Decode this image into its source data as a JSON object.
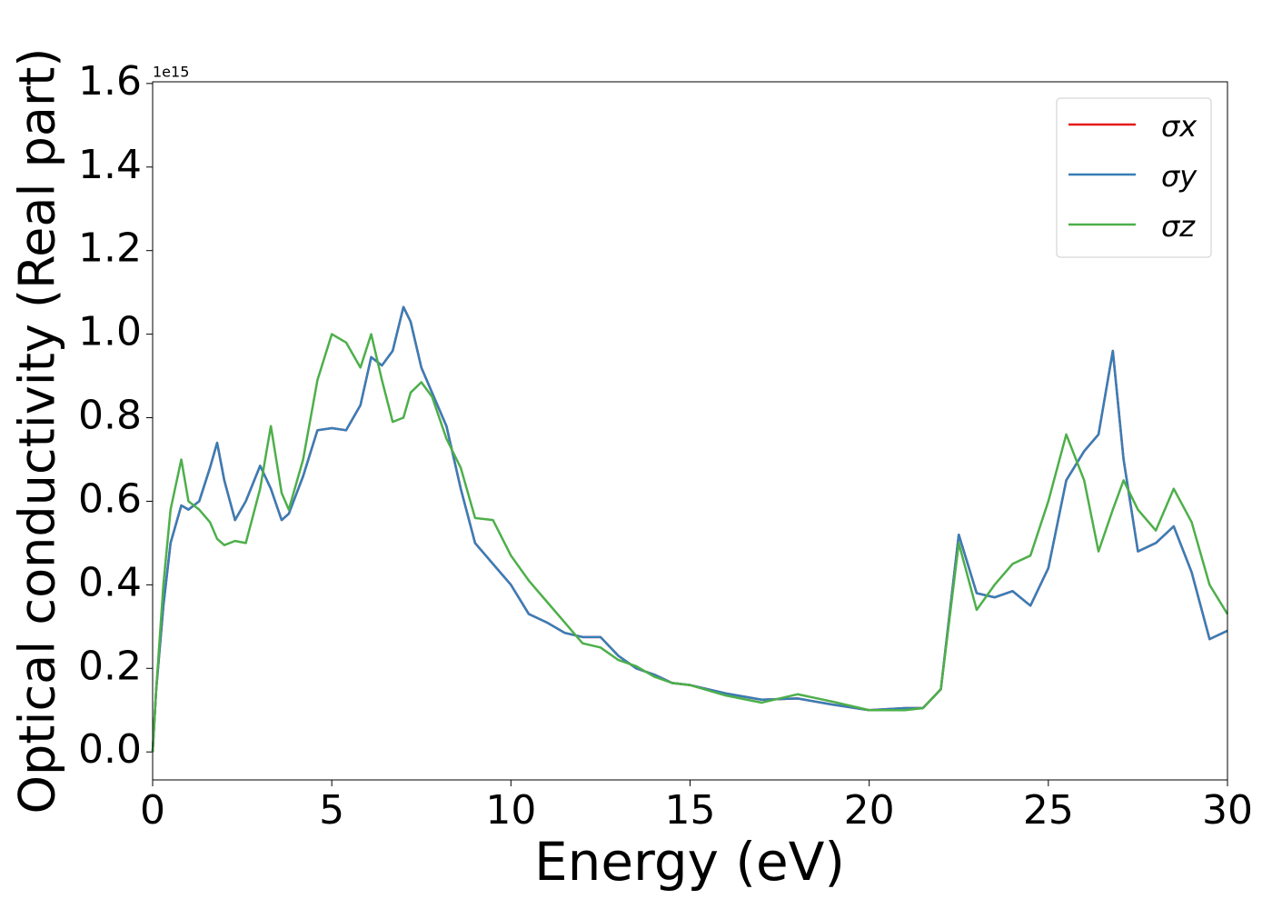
{
  "chart_data": {
    "type": "line",
    "xlabel": "Energy (eV)",
    "ylabel": "Optical conductivity (Real part)",
    "y_offset_label": "1e15",
    "xlim": [
      0,
      30
    ],
    "xticks": [
      0,
      5,
      10,
      15,
      20,
      25,
      30
    ],
    "ylim": [
      -0.067,
      1.604
    ],
    "yticks": [
      {
        "value": 0,
        "label": "0.0"
      },
      0.2,
      0.4,
      0.6,
      0.8,
      {
        "value": 1,
        "label": "1.0"
      },
      1.2,
      1.4,
      1.6
    ],
    "grid": false,
    "legend": "upper right",
    "x": [
      0,
      0.1,
      0.3,
      0.5,
      0.8,
      1.0,
      1.3,
      1.6,
      1.8,
      2.0,
      2.3,
      2.6,
      3.0,
      3.3,
      3.6,
      3.8,
      4.2,
      4.6,
      5.0,
      5.4,
      5.8,
      6.1,
      6.4,
      6.7,
      7.0,
      7.2,
      7.5,
      7.8,
      8.2,
      8.6,
      9.0,
      9.5,
      10.0,
      10.5,
      11.0,
      11.5,
      12.0,
      12.5,
      13.0,
      13.5,
      14.0,
      14.5,
      15.0,
      16,
      17,
      18,
      19,
      20,
      21,
      21.5,
      22.0,
      22.5,
      23.0,
      23.5,
      24.0,
      24.5,
      25.0,
      25.5,
      26.0,
      26.4,
      26.8,
      27.1,
      27.5,
      28.0,
      28.5,
      29.0,
      29.5,
      30
    ],
    "series": [
      {
        "name": "σx",
        "color": "#e41a1c",
        "values": [
          0,
          0.15,
          0.35,
          0.5,
          0.59,
          0.58,
          0.6,
          0.68,
          0.74,
          0.65,
          0.555,
          0.6,
          0.685,
          0.63,
          0.555,
          0.57,
          0.66,
          0.77,
          0.775,
          0.77,
          0.83,
          0.945,
          0.925,
          0.96,
          1.065,
          1.03,
          0.92,
          0.86,
          0.78,
          0.63,
          0.5,
          0.45,
          0.4,
          0.33,
          0.31,
          0.285,
          0.275,
          0.275,
          0.23,
          0.2,
          0.185,
          0.165,
          0.16,
          0.14,
          0.125,
          0.128,
          0.113,
          0.1,
          0.105,
          0.105,
          0.15,
          0.52,
          0.38,
          0.37,
          0.385,
          0.35,
          0.44,
          0.65,
          0.72,
          0.76,
          0.96,
          0.7,
          0.48,
          0.5,
          0.54,
          0.43,
          0.27,
          0.29
        ]
      },
      {
        "name": "σy",
        "color": "#377eb8",
        "values": [
          0,
          0.15,
          0.35,
          0.5,
          0.59,
          0.58,
          0.6,
          0.68,
          0.74,
          0.65,
          0.555,
          0.6,
          0.685,
          0.63,
          0.555,
          0.57,
          0.66,
          0.77,
          0.775,
          0.77,
          0.83,
          0.945,
          0.925,
          0.96,
          1.065,
          1.03,
          0.92,
          0.86,
          0.78,
          0.63,
          0.5,
          0.45,
          0.4,
          0.33,
          0.31,
          0.285,
          0.275,
          0.275,
          0.23,
          0.2,
          0.185,
          0.165,
          0.16,
          0.14,
          0.125,
          0.128,
          0.113,
          0.1,
          0.105,
          0.105,
          0.15,
          0.52,
          0.38,
          0.37,
          0.385,
          0.35,
          0.44,
          0.65,
          0.72,
          0.76,
          0.96,
          0.7,
          0.48,
          0.5,
          0.54,
          0.43,
          0.27,
          0.29
        ]
      },
      {
        "name": "σz",
        "color": "#4daf4a",
        "values": [
          0,
          0.15,
          0.4,
          0.58,
          0.7,
          0.6,
          0.58,
          0.55,
          0.51,
          0.495,
          0.505,
          0.5,
          0.63,
          0.78,
          0.62,
          0.58,
          0.7,
          0.89,
          1.0,
          0.98,
          0.92,
          1.0,
          0.89,
          0.79,
          0.8,
          0.86,
          0.885,
          0.85,
          0.75,
          0.68,
          0.56,
          0.555,
          0.47,
          0.41,
          0.36,
          0.31,
          0.26,
          0.25,
          0.22,
          0.205,
          0.18,
          0.165,
          0.16,
          0.135,
          0.118,
          0.138,
          0.12,
          0.1,
          0.1,
          0.105,
          0.15,
          0.5,
          0.34,
          0.4,
          0.45,
          0.47,
          0.6,
          0.76,
          0.65,
          0.48,
          0.58,
          0.65,
          0.58,
          0.53,
          0.63,
          0.55,
          0.4,
          0.33
        ]
      }
    ]
  }
}
